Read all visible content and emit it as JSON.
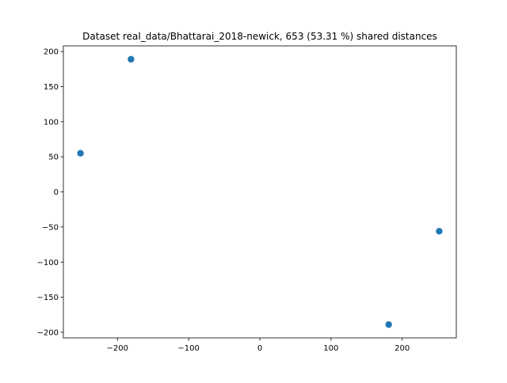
{
  "chart_data": {
    "type": "scatter",
    "title": "Dataset real_data/Bhattarai_2018-newick, 653 (53.31 %) shared distances",
    "xlabel": "",
    "ylabel": "",
    "xlim": [
      -276,
      276
    ],
    "ylim": [
      -208,
      208
    ],
    "xticks": [
      -200,
      -100,
      0,
      100,
      200
    ],
    "yticks": [
      -200,
      -150,
      -100,
      -50,
      0,
      50,
      100,
      150,
      200
    ],
    "xtick_labels": [
      "−200",
      "−100",
      "0",
      "100",
      "200"
    ],
    "ytick_labels": [
      "−200",
      "−150",
      "−100",
      "−50",
      "0",
      "50",
      "100",
      "150",
      "200"
    ],
    "grid": false,
    "legend": "none",
    "marker_color": "#1f77b4",
    "points": [
      {
        "x": -181,
        "y": 189
      },
      {
        "x": -252,
        "y": 55
      },
      {
        "x": 252,
        "y": -56
      },
      {
        "x": 181,
        "y": -189
      }
    ]
  }
}
